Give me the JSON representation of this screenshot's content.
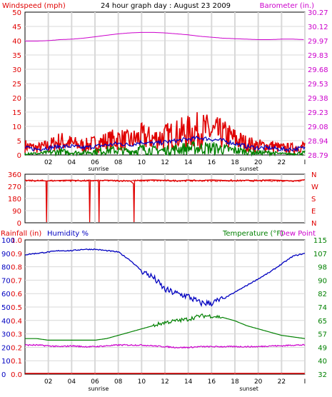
{
  "title": "24 hour graph day : August 23 2009",
  "colors": {
    "wind": "#e00000",
    "gust_avg": "#0000c0",
    "wind_avg": "#008000",
    "barometer": "#cc00cc",
    "direction": "#e00000",
    "humidity": "#0000c0",
    "temperature": "#008000",
    "dewpoint": "#cc00cc",
    "rain": "#e00000"
  },
  "x_axis": {
    "ticks": [
      "02",
      "04",
      "06",
      "08",
      "10",
      "12",
      "14",
      "16",
      "18",
      "20",
      "22",
      "I"
    ],
    "sunrise": "sunrise",
    "sunset": "sunset"
  },
  "chart_data": [
    {
      "type": "line",
      "labels": {
        "left": "Windspeed (mph)",
        "right": "Barometer (in.)"
      },
      "left_ticks": [
        "50",
        "45",
        "40",
        "35",
        "30",
        "25",
        "20",
        "15",
        "10",
        "5",
        "0"
      ],
      "right_ticks": [
        "30.27",
        "30.12",
        "29.97",
        "29.83",
        "29.68",
        "29.53",
        "29.38",
        "29.23",
        "29.08",
        "28.94",
        "28.79"
      ],
      "ylim_left": [
        0,
        50
      ],
      "ylim_right": [
        28.79,
        30.27
      ],
      "series": [
        {
          "key": "barometer",
          "axis": "right",
          "x": [
            0,
            1,
            2,
            3,
            4,
            5,
            6,
            7,
            8,
            9,
            10,
            11,
            12,
            13,
            14,
            15,
            16,
            17,
            18,
            19,
            20,
            21,
            22,
            23,
            24
          ],
          "values": [
            29.97,
            29.97,
            29.975,
            29.985,
            29.99,
            30.0,
            30.015,
            30.03,
            30.045,
            30.055,
            30.06,
            30.06,
            30.055,
            30.045,
            30.035,
            30.02,
            30.01,
            30.0,
            29.995,
            29.99,
            29.985,
            29.985,
            29.99,
            29.99,
            29.985
          ]
        },
        {
          "key": "wind",
          "axis": "left",
          "x": [
            0,
            1,
            2,
            3,
            4,
            5,
            6,
            7,
            8,
            9,
            10,
            11,
            12,
            13,
            14,
            15,
            16,
            17,
            18,
            19,
            20,
            21,
            22,
            23,
            24
          ],
          "values": [
            4,
            3,
            4,
            6,
            5,
            4,
            5,
            6,
            7,
            6,
            8,
            7,
            8,
            9,
            10,
            11,
            10,
            9,
            7,
            5,
            4,
            4,
            3,
            3,
            4
          ]
        },
        {
          "key": "gust_avg",
          "axis": "left",
          "x": [
            0,
            1,
            2,
            3,
            4,
            5,
            6,
            7,
            8,
            9,
            10,
            11,
            12,
            13,
            14,
            15,
            16,
            17,
            18,
            19,
            20,
            21,
            22,
            23,
            24
          ],
          "values": [
            2.5,
            2,
            2.5,
            3,
            3,
            2.5,
            3,
            3.5,
            4,
            3.5,
            4.5,
            4,
            4.5,
            5,
            5.5,
            6,
            5.5,
            5,
            4,
            3,
            2.5,
            2.5,
            2,
            2,
            2.5
          ]
        },
        {
          "key": "wind_avg",
          "axis": "left",
          "x": [
            0,
            1,
            2,
            3,
            4,
            5,
            6,
            7,
            8,
            9,
            10,
            11,
            12,
            13,
            14,
            15,
            16,
            17,
            18,
            19,
            20,
            21,
            22,
            23,
            24
          ],
          "values": [
            1,
            0.5,
            1,
            1.5,
            1,
            1,
            1.5,
            2,
            2,
            1.5,
            2.5,
            2,
            2,
            2.5,
            3,
            3,
            3,
            2.5,
            2,
            1.5,
            1,
            1,
            0.5,
            0.5,
            1
          ]
        }
      ]
    },
    {
      "type": "line",
      "labels": {
        "right": [
          "N",
          "W",
          "S",
          "E",
          "N"
        ]
      },
      "left_ticks": [
        "360",
        "270",
        "180",
        "90",
        "0"
      ],
      "ylim": [
        0,
        360
      ],
      "series": [
        {
          "key": "direction",
          "x": [
            0,
            1,
            1.8,
            1.85,
            1.9,
            2.5,
            3,
            4,
            5,
            5.5,
            5.55,
            5.6,
            6.2,
            6.3,
            6.35,
            6.4,
            7,
            8,
            9,
            9.3,
            9.35,
            9.4,
            10,
            11,
            12,
            13,
            14,
            15,
            16,
            17,
            18,
            19,
            20,
            21,
            22,
            23,
            24
          ],
          "values": [
            315,
            312,
            310,
            5,
            310,
            312,
            314,
            316,
            310,
            312,
            5,
            312,
            315,
            300,
            5,
            312,
            316,
            310,
            312,
            290,
            5,
            312,
            315,
            318,
            314,
            310,
            316,
            312,
            318,
            314,
            310,
            315,
            312,
            318,
            314,
            310,
            320
          ]
        }
      ]
    },
    {
      "type": "line",
      "labels": {
        "left_rain": "Rainfall (in)",
        "left_hum": "Humidity %",
        "right_temp": "Temperature (°F)",
        "right_dew": "Dew Point"
      },
      "rain_ticks": [
        "1.0",
        "0.9",
        "0.8",
        "0.7",
        "0.6",
        "0.5",
        "0.4",
        "0.3",
        "0.2",
        "0.1",
        "0.0"
      ],
      "humidity_ticks": [
        "100",
        "90",
        "80",
        "70",
        "60",
        "50",
        "40",
        "30",
        "20",
        "10",
        "0"
      ],
      "temp_ticks": [
        "115",
        "107",
        "98",
        "90",
        "82",
        "74",
        "65",
        "57",
        "49",
        "40",
        "32"
      ],
      "ylim_humidity": [
        0,
        100
      ],
      "ylim_temp": [
        32,
        115
      ],
      "series": [
        {
          "key": "humidity",
          "axis": "humidity",
          "x": [
            0,
            1,
            2,
            3,
            4,
            5,
            6,
            7,
            8,
            9,
            10,
            11,
            12,
            13,
            14,
            15,
            16,
            17,
            18,
            19,
            20,
            21,
            22,
            23,
            24
          ],
          "values": [
            89,
            90,
            91,
            92,
            92,
            93,
            93,
            92,
            91,
            85,
            77,
            72,
            63,
            60,
            58,
            53,
            53,
            56,
            61,
            66,
            71,
            76,
            82,
            88,
            90
          ]
        },
        {
          "key": "temperature",
          "axis": "temp",
          "x": [
            0,
            1,
            2,
            3,
            4,
            5,
            6,
            7,
            8,
            9,
            10,
            11,
            12,
            13,
            14,
            15,
            16,
            17,
            18,
            19,
            20,
            21,
            22,
            23,
            24
          ],
          "values": [
            54,
            54,
            53,
            53,
            53,
            53,
            53,
            54,
            56,
            58,
            60,
            62,
            64,
            65,
            66,
            68,
            68,
            67,
            65,
            62,
            60,
            58,
            56,
            55,
            54
          ]
        },
        {
          "key": "dewpoint",
          "axis": "temp",
          "x": [
            0,
            1,
            2,
            3,
            4,
            5,
            6,
            7,
            8,
            9,
            10,
            11,
            12,
            13,
            14,
            15,
            16,
            17,
            18,
            19,
            20,
            21,
            22,
            23,
            24
          ],
          "values": [
            50,
            50,
            49.5,
            49,
            49.5,
            49,
            49,
            49.5,
            50,
            50,
            50,
            49.5,
            49,
            48.5,
            48.5,
            49,
            49,
            49,
            49,
            49,
            49,
            49.5,
            49.5,
            50,
            50
          ]
        },
        {
          "key": "rain",
          "axis": "humidity",
          "x": [
            0,
            24
          ],
          "values": [
            0,
            0
          ]
        }
      ]
    }
  ]
}
